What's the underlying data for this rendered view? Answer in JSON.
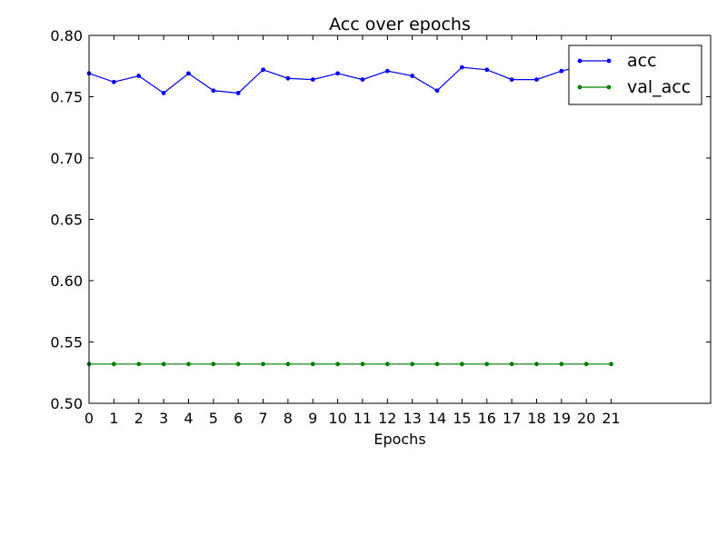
{
  "chart_data": {
    "type": "line",
    "title": "Acc over epochs",
    "xlabel": "Epochs",
    "ylabel": "",
    "xlim": [
      0,
      25
    ],
    "ylim": [
      0.5,
      0.8
    ],
    "x_ticks": [
      0,
      1,
      2,
      3,
      4,
      5,
      6,
      7,
      8,
      9,
      10,
      11,
      12,
      13,
      14,
      15,
      16,
      17,
      18,
      19,
      20,
      21
    ],
    "y_ticks": [
      0.5,
      0.55,
      0.6,
      0.65,
      0.7,
      0.75,
      0.8
    ],
    "y_tick_labels": [
      "0.50",
      "0.55",
      "0.60",
      "0.65",
      "0.70",
      "0.75",
      "0.80"
    ],
    "grid": false,
    "legend_position": "top-right",
    "x": [
      0,
      1,
      2,
      3,
      4,
      5,
      6,
      7,
      8,
      9,
      10,
      11,
      12,
      13,
      14,
      15,
      16,
      17,
      18,
      19,
      20,
      21
    ],
    "series": [
      {
        "name": "acc",
        "color": "#0000ff",
        "values": [
          0.769,
          0.762,
          0.767,
          0.753,
          0.769,
          0.755,
          0.753,
          0.772,
          0.765,
          0.764,
          0.769,
          0.764,
          0.771,
          0.767,
          0.755,
          0.774,
          0.772,
          0.764,
          0.764,
          0.771,
          0.776,
          0.773
        ]
      },
      {
        "name": "val_acc",
        "color": "#008000",
        "values": [
          0.532,
          0.532,
          0.532,
          0.532,
          0.532,
          0.532,
          0.532,
          0.532,
          0.532,
          0.532,
          0.532,
          0.532,
          0.532,
          0.532,
          0.532,
          0.532,
          0.532,
          0.532,
          0.532,
          0.532,
          0.532,
          0.532
        ]
      }
    ]
  }
}
